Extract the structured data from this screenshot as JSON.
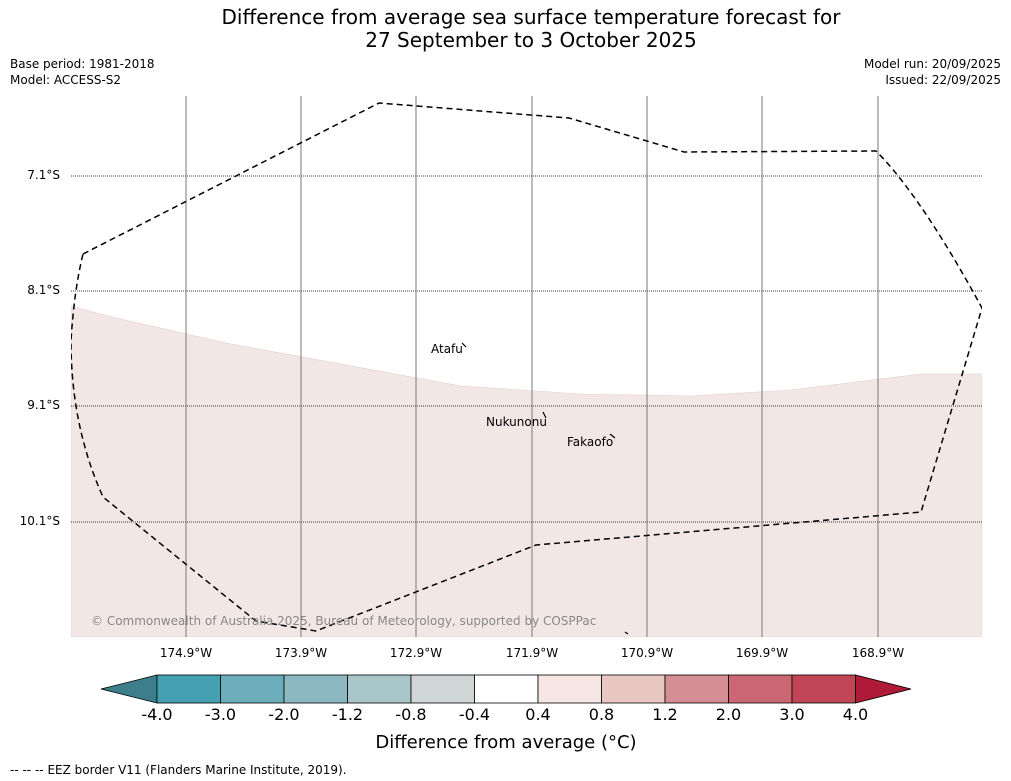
{
  "title": {
    "line1": "Difference from average sea surface temperature forecast for",
    "line2": "27 September to 3 October 2025"
  },
  "meta": {
    "base_period": "Base period: 1981-2018",
    "model": "Model: ACCESS-S2",
    "model_run": "Model run: 20/09/2025",
    "issued": "Issued: 22/09/2025"
  },
  "map": {
    "latitude_labels": [
      "7.1°S",
      "8.1°S",
      "9.1°S",
      "10.1°S"
    ],
    "longitude_labels": [
      "174.9°W",
      "173.9°W",
      "172.9°W",
      "171.9°W",
      "170.9°W",
      "169.9°W",
      "168.9°W"
    ],
    "islands": [
      "Atafu",
      "Nukunonu",
      "Fakaofo"
    ],
    "copyright": "© Commonwealth of Australia 2025, Bureau of Meteorology, supported by COSPPac",
    "colors": {
      "anomaly_fill": "#f3e7e6",
      "eez_line": "#000000",
      "grid": "#777777"
    }
  },
  "colorbar": {
    "ticks": [
      "-4.0",
      "-3.0",
      "-2.0",
      "-1.2",
      "-0.8",
      "-0.4",
      "0.4",
      "0.8",
      "1.2",
      "2.0",
      "3.0",
      "4.0"
    ],
    "colors": [
      "#3c7f8a",
      "#44a1b2",
      "#6badbb",
      "#8cb8c1",
      "#a9c7ca",
      "#cfd6d5",
      "#ffffff",
      "#f6e7e5",
      "#e8c6c2",
      "#d68e95",
      "#cb6772",
      "#c04555",
      "#ae1a38"
    ],
    "label": "Difference from average (°C)"
  },
  "legend": {
    "line_sample": "--  --  --",
    "text": "EEZ border V11 (Flanders Marine Institute, 2019)."
  }
}
